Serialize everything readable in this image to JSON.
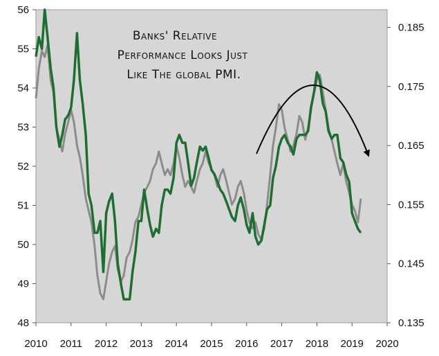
{
  "chart_data": {
    "type": "line",
    "title": "",
    "annotation": [
      "Banks' Relative",
      "Performance Looks Just",
      "Like The global PMI."
    ],
    "x_ticks": [
      "2010",
      "2011",
      "2012",
      "2013",
      "2014",
      "2015",
      "2016",
      "2017",
      "2018",
      "2019",
      "2020"
    ],
    "xlim": [
      2010,
      2020
    ],
    "y_left": {
      "ticks": [
        "56",
        "55",
        "54",
        "53",
        "52",
        "51",
        "50",
        "49",
        "48"
      ],
      "ylim": [
        48,
        56
      ]
    },
    "y_right": {
      "ticks": [
        "0.185",
        "0.175",
        "0.165",
        "0.155",
        "0.145",
        "0.135"
      ],
      "ylim": [
        0.135,
        0.188
      ]
    },
    "grid": false,
    "colors": {
      "pmi": "#1e6e32",
      "banks": "#8c8c8c",
      "plot_bg": "#d6d6d6",
      "arrow": "#000000"
    },
    "series": [
      {
        "axis": "left",
        "x": [
          2010.0,
          2010.08,
          2010.17,
          2010.25,
          2010.33,
          2010.42,
          2010.5,
          2010.58,
          2010.67,
          2010.75,
          2010.83,
          2010.92,
          2011.0,
          2011.08,
          2011.17,
          2011.25,
          2011.33,
          2011.42,
          2011.5,
          2011.58,
          2011.67,
          2011.75,
          2011.83,
          2011.92,
          2012.0,
          2012.08,
          2012.17,
          2012.25,
          2012.33,
          2012.42,
          2012.5,
          2012.58,
          2012.67,
          2012.75,
          2012.83,
          2012.92,
          2013.0,
          2013.08,
          2013.17,
          2013.25,
          2013.33,
          2013.42,
          2013.5,
          2013.58,
          2013.67,
          2013.75,
          2013.83,
          2013.92,
          2014.0,
          2014.08,
          2014.17,
          2014.25,
          2014.33,
          2014.42,
          2014.5,
          2014.58,
          2014.67,
          2014.75,
          2014.83,
          2014.92,
          2015.0,
          2015.08,
          2015.17,
          2015.25,
          2015.33,
          2015.42,
          2015.5,
          2015.58,
          2015.67,
          2015.75,
          2015.83,
          2015.92,
          2016.0,
          2016.08,
          2016.17,
          2016.25,
          2016.33,
          2016.42,
          2016.5,
          2016.58,
          2016.67,
          2016.75,
          2016.83,
          2016.92,
          2017.0,
          2017.08,
          2017.17,
          2017.25,
          2017.33,
          2017.42,
          2017.5,
          2017.58,
          2017.67,
          2017.75,
          2017.83,
          2017.92,
          2018.0,
          2018.08,
          2018.17,
          2018.25,
          2018.33,
          2018.42,
          2018.5,
          2018.58,
          2018.67,
          2018.75,
          2018.83,
          2018.92,
          2019.0,
          2019.08,
          2019.17,
          2019.25
        ],
        "values": [
          54.8,
          55.3,
          55.0,
          56.0,
          55.3,
          54.5,
          54.0,
          53.0,
          52.5,
          52.8,
          53.2,
          53.3,
          53.5,
          54.2,
          55.4,
          54.2,
          53.6,
          52.8,
          51.3,
          51.0,
          50.3,
          50.3,
          50.6,
          49.3,
          50.8,
          51.1,
          51.3,
          50.6,
          49.5,
          49.0,
          48.6,
          48.6,
          48.6,
          49.3,
          49.8,
          50.6,
          50.6,
          51.4,
          50.9,
          50.5,
          50.2,
          50.4,
          50.3,
          51.0,
          51.4,
          51.4,
          51.3,
          51.7,
          52.6,
          52.8,
          52.6,
          52.6,
          52.1,
          51.5,
          51.7,
          52.1,
          52.5,
          52.4,
          52.5,
          52.2,
          51.9,
          51.8,
          51.6,
          51.4,
          51.3,
          51.1,
          50.9,
          50.7,
          50.6,
          51.0,
          51.2,
          50.9,
          50.5,
          50.3,
          50.8,
          50.2,
          50.0,
          50.1,
          50.5,
          50.9,
          51.0,
          51.7,
          52.0,
          52.5,
          52.7,
          52.8,
          52.6,
          52.5,
          52.3,
          52.7,
          52.8,
          52.8,
          52.8,
          52.9,
          53.5,
          53.9,
          54.4,
          54.2,
          53.6,
          53.4,
          52.9,
          52.7,
          52.8,
          52.8,
          52.2,
          52.1,
          51.8,
          51.6,
          50.8,
          50.6,
          50.4,
          50.3
        ]
      },
      {
        "axis": "right",
        "x": [
          2010.0,
          2010.08,
          2010.17,
          2010.25,
          2010.33,
          2010.42,
          2010.5,
          2010.58,
          2010.67,
          2010.75,
          2010.83,
          2010.92,
          2011.0,
          2011.08,
          2011.17,
          2011.25,
          2011.33,
          2011.42,
          2011.5,
          2011.58,
          2011.67,
          2011.75,
          2011.83,
          2011.92,
          2012.0,
          2012.08,
          2012.17,
          2012.25,
          2012.33,
          2012.42,
          2012.5,
          2012.58,
          2012.67,
          2012.75,
          2012.83,
          2012.92,
          2013.0,
          2013.08,
          2013.17,
          2013.25,
          2013.33,
          2013.42,
          2013.5,
          2013.58,
          2013.67,
          2013.75,
          2013.83,
          2013.92,
          2014.0,
          2014.08,
          2014.17,
          2014.25,
          2014.33,
          2014.42,
          2014.5,
          2014.58,
          2014.67,
          2014.75,
          2014.83,
          2014.92,
          2015.0,
          2015.08,
          2015.17,
          2015.25,
          2015.33,
          2015.42,
          2015.5,
          2015.58,
          2015.67,
          2015.75,
          2015.83,
          2015.92,
          2016.0,
          2016.08,
          2016.17,
          2016.25,
          2016.33,
          2016.42,
          2016.5,
          2016.58,
          2016.67,
          2016.75,
          2016.83,
          2016.92,
          2017.0,
          2017.08,
          2017.17,
          2017.25,
          2017.33,
          2017.42,
          2017.5,
          2017.58,
          2017.67,
          2017.75,
          2017.83,
          2017.92,
          2018.0,
          2018.08,
          2018.17,
          2018.25,
          2018.33,
          2018.42,
          2018.5,
          2018.58,
          2018.67,
          2018.75,
          2018.83,
          2018.92,
          2019.0,
          2019.08,
          2019.17,
          2019.25
        ],
        "values": [
          0.173,
          0.178,
          0.181,
          0.18,
          0.182,
          0.176,
          0.174,
          0.168,
          0.166,
          0.164,
          0.167,
          0.169,
          0.171,
          0.169,
          0.165,
          0.163,
          0.16,
          0.156,
          0.154,
          0.152,
          0.148,
          0.143,
          0.14,
          0.139,
          0.142,
          0.145,
          0.147,
          0.148,
          0.144,
          0.142,
          0.143,
          0.146,
          0.147,
          0.149,
          0.152,
          0.153,
          0.155,
          0.157,
          0.158,
          0.159,
          0.161,
          0.162,
          0.164,
          0.162,
          0.16,
          0.161,
          0.16,
          0.162,
          0.165,
          0.163,
          0.16,
          0.158,
          0.159,
          0.158,
          0.157,
          0.159,
          0.161,
          0.162,
          0.164,
          0.162,
          0.161,
          0.16,
          0.158,
          0.16,
          0.161,
          0.159,
          0.157,
          0.155,
          0.156,
          0.158,
          0.159,
          0.157,
          0.154,
          0.152,
          0.151,
          0.152,
          0.15,
          0.149,
          0.151,
          0.155,
          0.16,
          0.165,
          0.168,
          0.172,
          0.171,
          0.168,
          0.166,
          0.164,
          0.165,
          0.167,
          0.17,
          0.169,
          0.166,
          0.168,
          0.171,
          0.174,
          0.176,
          0.177,
          0.174,
          0.171,
          0.168,
          0.166,
          0.164,
          0.162,
          0.16,
          0.162,
          0.159,
          0.157,
          0.155,
          0.154,
          0.152,
          0.156
        ]
      }
    ]
  }
}
